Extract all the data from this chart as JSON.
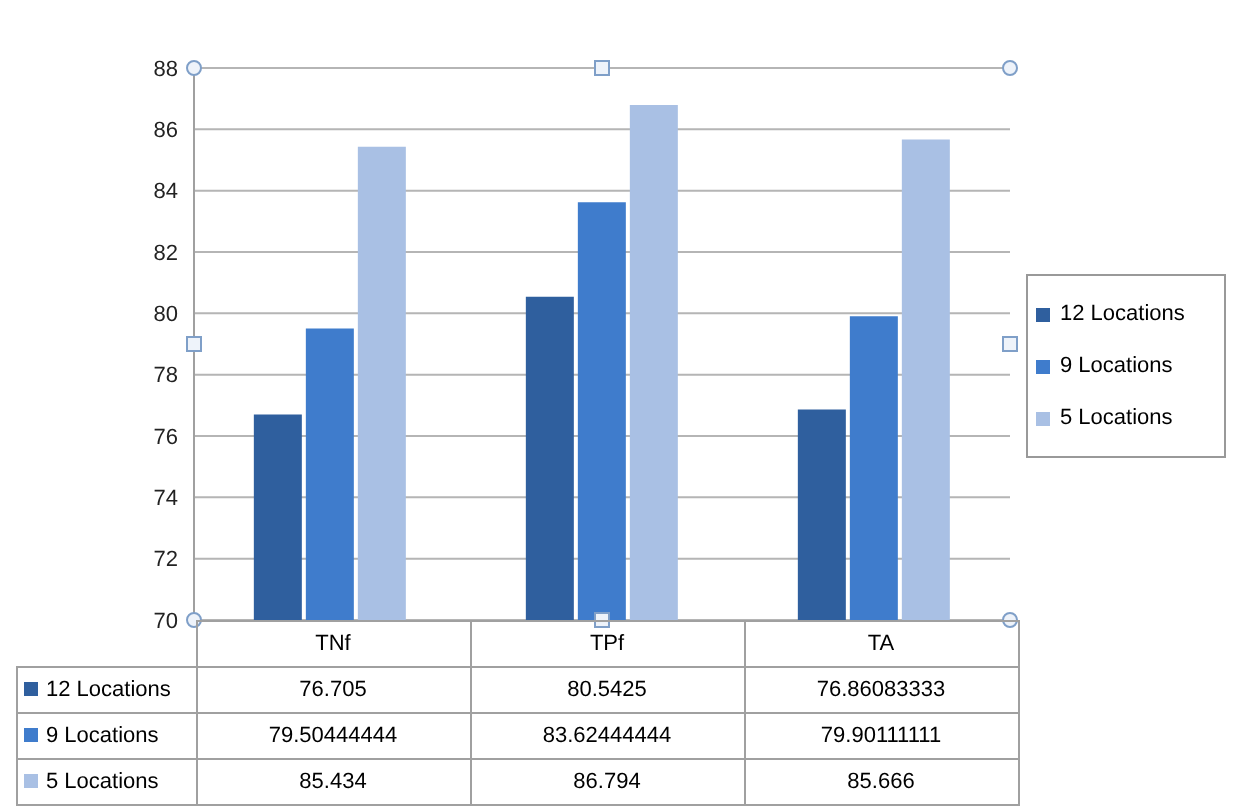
{
  "chart_data": {
    "type": "bar",
    "categories": [
      "TNf",
      "TPf",
      "TA"
    ],
    "series": [
      {
        "name": "12 Locations",
        "color": "#2f5f9e",
        "values": [
          76.705,
          80.5425,
          76.86083333
        ]
      },
      {
        "name": "9 Locations",
        "color": "#3f7ccc",
        "values": [
          79.50444444,
          83.62444444,
          79.90111111
        ]
      },
      {
        "name": "5 Locations",
        "color": "#a9c0e4",
        "values": [
          85.434,
          86.794,
          85.666
        ]
      }
    ],
    "ylim": [
      70,
      88
    ],
    "yticks": [
      70,
      72,
      74,
      76,
      78,
      80,
      82,
      84,
      86,
      88
    ],
    "grid": "y",
    "legend": "right",
    "data_labels": true
  }
}
